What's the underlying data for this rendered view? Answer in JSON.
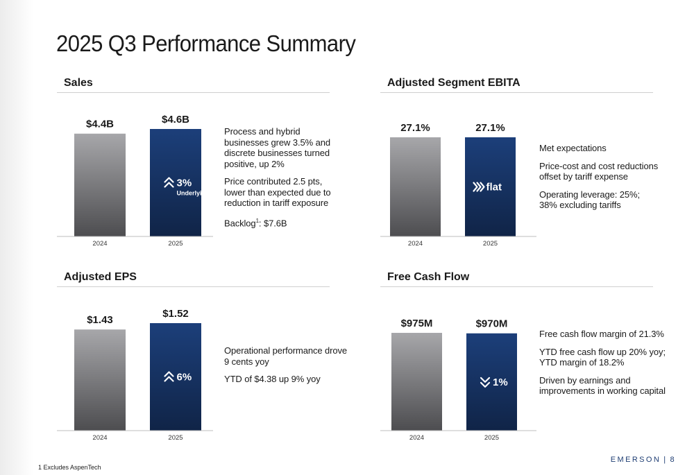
{
  "title": "2025 Q3 Performance Summary",
  "colors": {
    "accent": "#1c3f7a",
    "accent_dark": "#102447",
    "gray_top": "#a7a7aa",
    "gray_bottom": "#4d4d50"
  },
  "panels": [
    {
      "heading": "Sales",
      "chart_data": {
        "type": "bar",
        "categories": [
          "2024",
          "2025"
        ],
        "values": [
          4.4,
          4.6
        ],
        "value_labels": [
          "$4.4B",
          "$4.6B"
        ],
        "badge": {
          "icon": "double-chevron-up-icon",
          "text": "3%",
          "subtext": "Underlying"
        },
        "ylim": [
          0,
          4.6
        ]
      },
      "notes": [
        {
          "text": "Process and hybrid\nbusinesses grew 3.5% and\ndiscrete businesses turned\npositive, up 2%"
        },
        {
          "text": "Price contributed 2.5 pts,\nlower than expected due to\nreduction in tariff exposure"
        },
        {
          "text": "Backlog",
          "sup": "1",
          "tail": ": $7.6B"
        }
      ]
    },
    {
      "heading": "Adjusted Segment EBITA",
      "chart_data": {
        "type": "bar",
        "categories": [
          "2024",
          "2025"
        ],
        "values": [
          27.1,
          27.1
        ],
        "value_labels": [
          "27.1%",
          "27.1%"
        ],
        "badge": {
          "icon": "triple-chevron-right-icon",
          "text": "flat",
          "subtext": ""
        },
        "ylim": [
          0,
          27.1
        ]
      },
      "notes": [
        {
          "text": "Met expectations"
        },
        {
          "text": "Price-cost and cost reductions\noffset by tariff expense"
        },
        {
          "text": "Operating leverage: 25%;\n38% excluding tariffs"
        }
      ]
    },
    {
      "heading": "Adjusted EPS",
      "chart_data": {
        "type": "bar",
        "categories": [
          "2024",
          "2025"
        ],
        "values": [
          1.43,
          1.52
        ],
        "value_labels": [
          "$1.43",
          "$1.52"
        ],
        "badge": {
          "icon": "double-chevron-up-icon",
          "text": "6%",
          "subtext": ""
        },
        "ylim": [
          0,
          1.52
        ]
      },
      "notes": [
        {
          "text": "Operational performance drove\n9 cents yoy"
        },
        {
          "text": "YTD of $4.38 up 9% yoy"
        }
      ]
    },
    {
      "heading": "Free Cash Flow",
      "chart_data": {
        "type": "bar",
        "categories": [
          "2024",
          "2025"
        ],
        "values": [
          975,
          970
        ],
        "value_labels": [
          "$975M",
          "$970M"
        ],
        "badge": {
          "icon": "double-chevron-down-icon",
          "text": "1%",
          "subtext": ""
        },
        "ylim": [
          0,
          975
        ]
      },
      "notes": [
        {
          "text": "Free cash flow margin of 21.3%"
        },
        {
          "text": "YTD free cash flow up 20% yoy;\nYTD margin of 18.2%"
        },
        {
          "text": "Driven by earnings and\nimprovements in working capital"
        }
      ]
    }
  ],
  "footnote": "1 Excludes AspenTech",
  "brand": {
    "name": "EMERSON",
    "separator": "|",
    "page": "8"
  }
}
